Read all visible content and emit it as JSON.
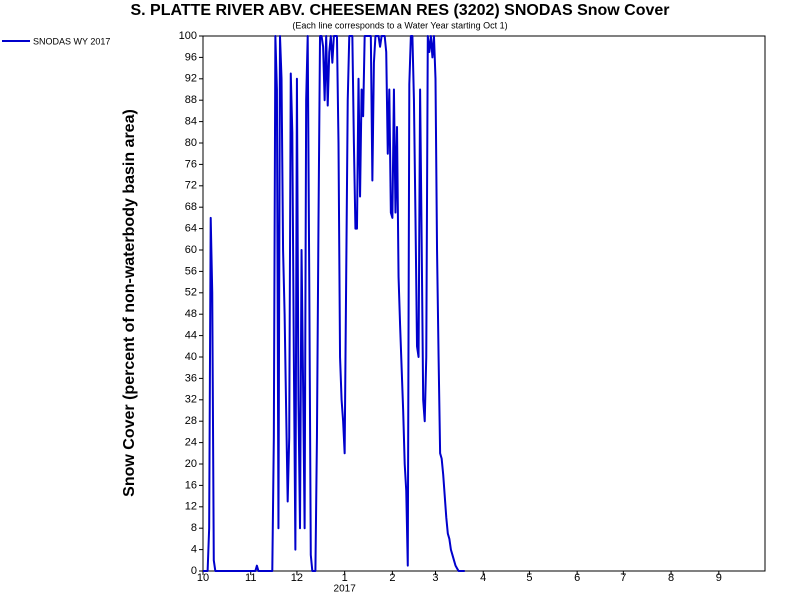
{
  "chart_data": {
    "type": "line",
    "title": "S. PLATTE RIVER ABV. CHEESEMAN RES (3202) SNODAS Snow Cover",
    "subtitle": "(Each line corresponds to a Water Year starting Oct 1)",
    "y_label": "Snow Cover (percent of non-waterbody basin area)",
    "year_label": "2017",
    "x": [
      0,
      3,
      4,
      5,
      6,
      7,
      8,
      34,
      35,
      36,
      45,
      46,
      47,
      48,
      49,
      50,
      51,
      52,
      53,
      54,
      55,
      56,
      57,
      58,
      59,
      60,
      61,
      62,
      63,
      64,
      65,
      66,
      67,
      68,
      69,
      70,
      71,
      72,
      73,
      74,
      75,
      76,
      77,
      78,
      79,
      80,
      81,
      82,
      83,
      84,
      85,
      86,
      87,
      88,
      89,
      90,
      91,
      92,
      93,
      94,
      95,
      96,
      97,
      98,
      99,
      100,
      101,
      102,
      103,
      104,
      105,
      106,
      107,
      108,
      109,
      110,
      111,
      112,
      113,
      114,
      115,
      116,
      117,
      118,
      119,
      120,
      121,
      122,
      123,
      124,
      125,
      126,
      127,
      128,
      129,
      130,
      131,
      132,
      133,
      134,
      135,
      136,
      137,
      138,
      139,
      140,
      141,
      142,
      143,
      144,
      145,
      146,
      147,
      148,
      149,
      150,
      151,
      152,
      153,
      154,
      155,
      156,
      157,
      158,
      159,
      160,
      161,
      162,
      163,
      164,
      165,
      166,
      170
    ],
    "series": [
      {
        "name": "SNODAS WY 2017",
        "color": "#0000cc",
        "values": [
          0,
          0,
          8,
          66,
          52,
          2,
          0,
          0,
          1,
          0,
          0,
          25,
          100,
          90,
          8,
          100,
          92,
          60,
          48,
          30,
          13,
          25,
          93,
          82,
          40,
          4,
          92,
          32,
          8,
          60,
          35,
          8,
          88,
          100,
          55,
          3,
          0,
          0,
          0,
          25,
          65,
          100,
          100,
          98,
          88,
          100,
          87,
          97,
          100,
          95,
          100,
          100,
          100,
          80,
          40,
          32,
          28,
          22,
          55,
          88,
          100,
          100,
          100,
          80,
          64,
          64,
          92,
          70,
          90,
          85,
          100,
          100,
          100,
          100,
          100,
          73,
          95,
          100,
          100,
          100,
          98,
          100,
          100,
          100,
          97,
          78,
          90,
          67,
          66,
          90,
          67,
          83,
          55,
          46,
          38,
          30,
          20,
          15,
          1,
          91,
          100,
          100,
          88,
          66,
          42,
          40,
          90,
          62,
          32,
          28,
          40,
          100,
          97,
          100,
          96,
          100,
          92,
          60,
          40,
          22,
          21,
          18,
          14,
          10,
          7,
          6,
          4,
          3,
          2,
          1,
          0.5,
          0,
          0
        ]
      }
    ],
    "xlim": [
      0,
      365
    ],
    "xticks": [
      {
        "value": 0,
        "label": "10"
      },
      {
        "value": 31,
        "label": "11"
      },
      {
        "value": 61,
        "label": "12"
      },
      {
        "value": 92,
        "label": "1"
      },
      {
        "value": 123,
        "label": "2"
      },
      {
        "value": 151,
        "label": "3"
      },
      {
        "value": 182,
        "label": "4"
      },
      {
        "value": 212,
        "label": "5"
      },
      {
        "value": 243,
        "label": "6"
      },
      {
        "value": 273,
        "label": "7"
      },
      {
        "value": 304,
        "label": "8"
      },
      {
        "value": 335,
        "label": "9"
      }
    ],
    "ylim": [
      0,
      100
    ],
    "yticks": [
      0,
      4,
      8,
      12,
      16,
      20,
      24,
      28,
      32,
      36,
      40,
      44,
      48,
      52,
      56,
      60,
      64,
      68,
      72,
      76,
      80,
      84,
      88,
      92,
      96,
      100
    ],
    "grid": false
  }
}
